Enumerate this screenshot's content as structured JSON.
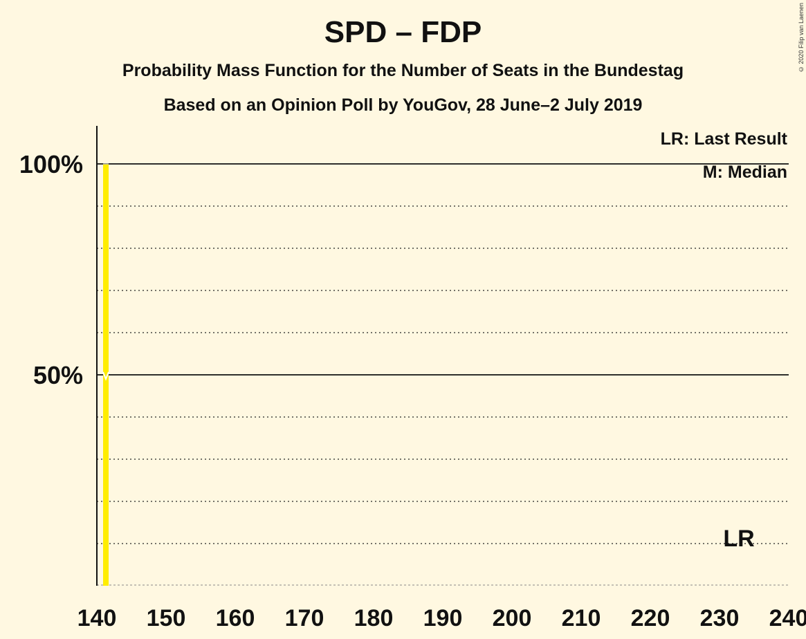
{
  "title": "SPD – FDP",
  "subtitle1": "Probability Mass Function for the Number of Seats in the Bundestag",
  "subtitle2": "Based on an Opinion Poll by YouGov, 28 June–2 July 2019",
  "copyright": "© 2020 Filip van Laenen",
  "legend": {
    "lr": "LR: Last Result",
    "median": "M: Median"
  },
  "colors": {
    "background": "#FFF8E1",
    "bar": "#FFED00",
    "text": "#111111"
  },
  "chart_data": {
    "type": "bar",
    "x_ticks": [
      140,
      150,
      160,
      170,
      180,
      190,
      200,
      210,
      220,
      230,
      240
    ],
    "xlim": [
      140,
      240
    ],
    "ylim": [
      0,
      1.1
    ],
    "y_ticks": [
      {
        "value": 0.5,
        "label": "50%"
      },
      {
        "value": 1.0,
        "label": "100%"
      }
    ],
    "y_dotted": [
      0.1,
      0.2,
      0.3,
      0.4,
      0.6,
      0.7,
      0.8,
      0.9
    ],
    "series": [
      {
        "x": [
          141
        ],
        "values": [
          1.0
        ]
      }
    ],
    "median": {
      "x": 141,
      "y": 0.5
    },
    "last_result": {
      "x": 233,
      "label": "LR"
    }
  }
}
